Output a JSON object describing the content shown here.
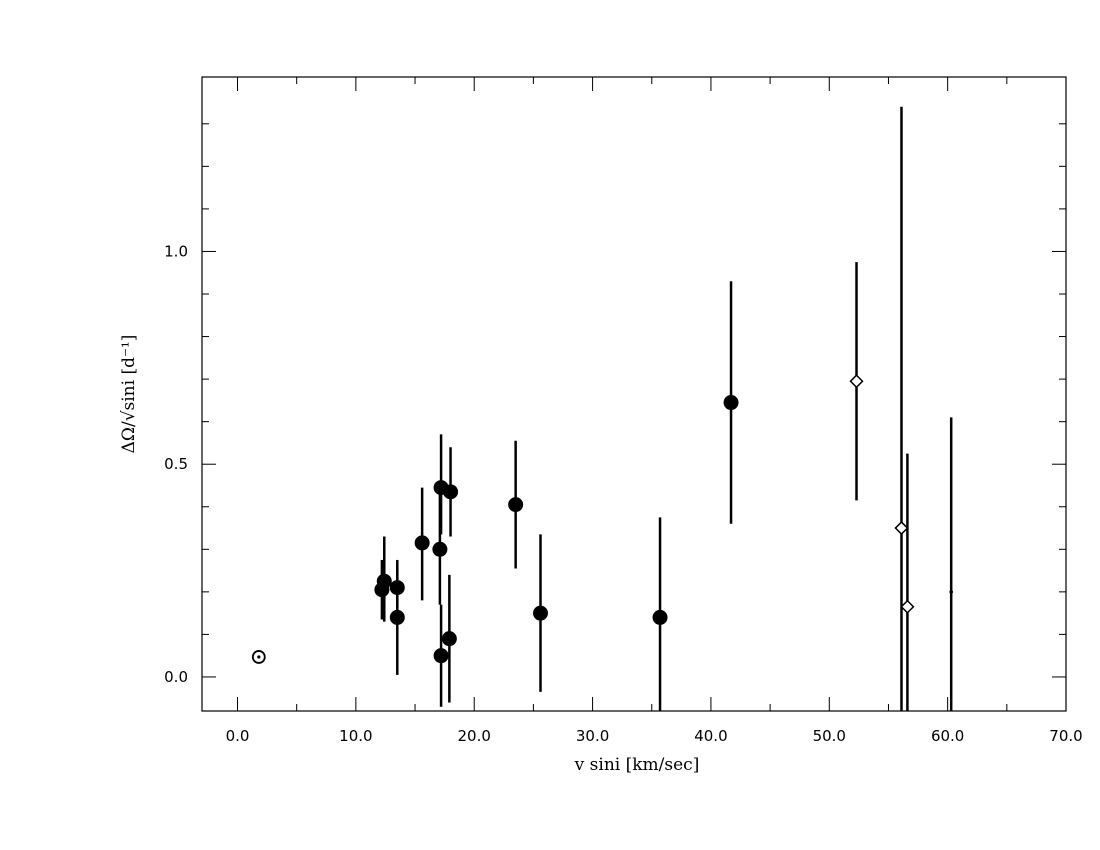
{
  "chart_data": {
    "type": "scatter",
    "xlabel": "v sini [km/sec]",
    "ylabel": "ΔΩ/√sini [d⁻¹]",
    "xlim": [
      -3,
      70
    ],
    "ylim": [
      -0.08,
      1.41
    ],
    "xticks": [
      {
        "value": 0,
        "label": "0.0"
      },
      {
        "value": 10,
        "label": "10.0"
      },
      {
        "value": 20,
        "label": "20.0"
      },
      {
        "value": 30,
        "label": "30.0"
      },
      {
        "value": 40,
        "label": "40.0"
      },
      {
        "value": 50,
        "label": "50.0"
      },
      {
        "value": 60,
        "label": "60.0"
      },
      {
        "value": 70,
        "label": "70.0"
      }
    ],
    "yticks": [
      {
        "value": 0,
        "label": "0.0"
      },
      {
        "value": 0.5,
        "label": "0.5"
      },
      {
        "value": 1.0,
        "label": "1.0"
      }
    ],
    "grid": false,
    "series": [
      {
        "marker": "sun",
        "points": [
          {
            "x": 1.8,
            "y": 0.047
          }
        ]
      },
      {
        "marker": "filled-circle",
        "points": [
          {
            "x": 12.2,
            "y": 0.205,
            "ylo": 0.135,
            "yhi": 0.275
          },
          {
            "x": 12.4,
            "y": 0.225,
            "ylo": 0.13,
            "yhi": 0.33
          },
          {
            "x": 13.5,
            "y": 0.21,
            "ylo": 0.14,
            "yhi": 0.275
          },
          {
            "x": 13.5,
            "y": 0.14,
            "ylo": 0.005,
            "yhi": 0.265
          },
          {
            "x": 15.6,
            "y": 0.315,
            "ylo": 0.18,
            "yhi": 0.445
          },
          {
            "x": 17.1,
            "y": 0.3,
            "ylo": 0.17,
            "yhi": 0.435
          },
          {
            "x": 17.2,
            "y": 0.445,
            "ylo": 0.335,
            "yhi": 0.57
          },
          {
            "x": 17.2,
            "y": 0.05,
            "ylo": -0.07,
            "yhi": 0.17
          },
          {
            "x": 18.0,
            "y": 0.435,
            "ylo": 0.33,
            "yhi": 0.54
          },
          {
            "x": 17.9,
            "y": 0.09,
            "ylo": -0.06,
            "yhi": 0.24
          },
          {
            "x": 23.5,
            "y": 0.405,
            "ylo": 0.255,
            "yhi": 0.555
          },
          {
            "x": 25.6,
            "y": 0.15,
            "ylo": -0.035,
            "yhi": 0.335
          },
          {
            "x": 35.7,
            "y": 0.14,
            "ylo": -0.09,
            "yhi": 0.375
          },
          {
            "x": 41.7,
            "y": 0.645,
            "ylo": 0.36,
            "yhi": 0.93
          }
        ]
      },
      {
        "marker": "open-diamond",
        "points": [
          {
            "x": 52.3,
            "y": 0.695,
            "ylo": 0.415,
            "yhi": 0.975
          },
          {
            "x": 56.1,
            "y": 0.35,
            "ylo": -0.09,
            "yhi": 1.34
          },
          {
            "x": 56.6,
            "y": 0.165,
            "ylo": -0.09,
            "yhi": 0.525
          }
        ]
      },
      {
        "marker": "dot",
        "points": [
          {
            "x": 60.3,
            "y": 0.2,
            "ylo": -0.09,
            "yhi": 0.61
          }
        ]
      }
    ]
  }
}
